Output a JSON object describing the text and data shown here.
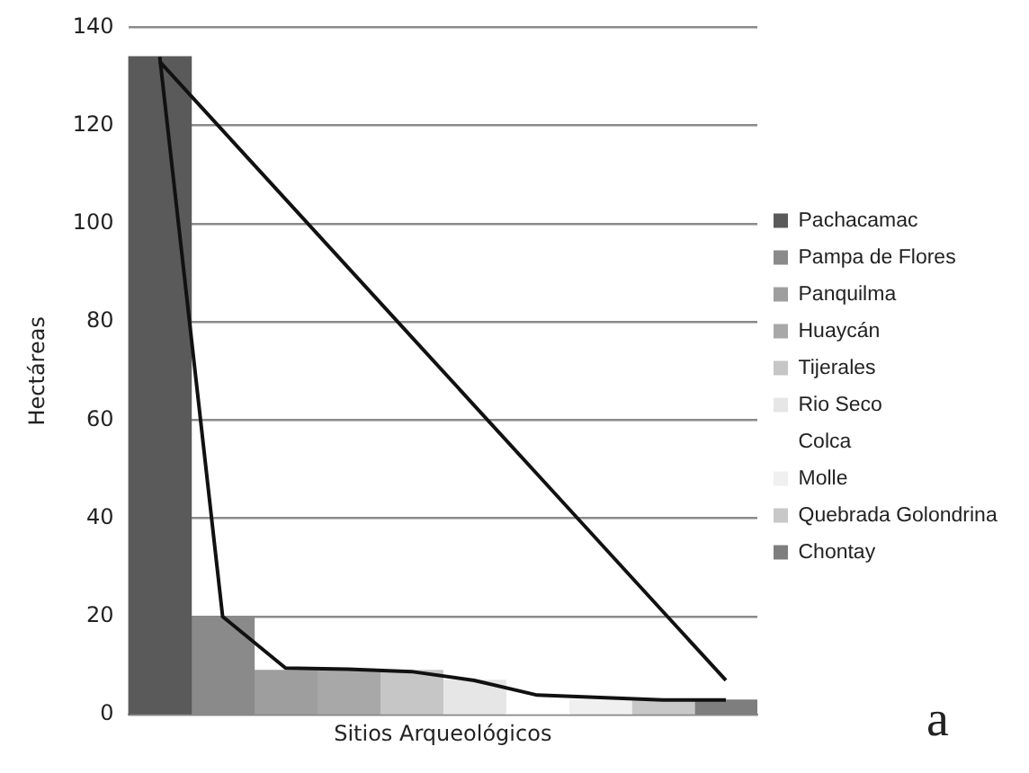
{
  "chart_data": {
    "type": "bar",
    "xlabel": "Sitios Arqueológicos",
    "ylabel": "Hectáreas",
    "categories": [
      null,
      null,
      null,
      null,
      null,
      null,
      null,
      null,
      null,
      null
    ],
    "series": [
      {
        "name": "Pachacamac",
        "color": "#5a5a5a",
        "values": [
          134,
          null,
          null,
          null,
          null,
          null,
          null,
          null,
          null,
          null
        ]
      },
      {
        "name": "Pampa de Flores",
        "color": "#8a8a8a",
        "values": [
          null,
          20,
          null,
          null,
          null,
          null,
          null,
          null,
          null,
          null
        ]
      },
      {
        "name": "Panquilma",
        "color": "#9e9e9e",
        "values": [
          null,
          null,
          9,
          null,
          null,
          null,
          null,
          null,
          null,
          null
        ]
      },
      {
        "name": "Huaycán",
        "color": "#a8a8a8",
        "values": [
          null,
          null,
          null,
          9,
          null,
          null,
          null,
          null,
          null,
          null
        ]
      },
      {
        "name": "Tijerales",
        "color": "#c6c6c6",
        "values": [
          null,
          null,
          null,
          null,
          9,
          null,
          null,
          null,
          null,
          null
        ]
      },
      {
        "name": "Rio Seco",
        "color": "#e6e6e6",
        "values": [
          null,
          null,
          null,
          null,
          null,
          7,
          null,
          null,
          null,
          null
        ]
      },
      {
        "name": "Colca",
        "color": "#ffffff",
        "values": [
          null,
          null,
          null,
          null,
          null,
          null,
          4,
          null,
          null,
          null
        ]
      },
      {
        "name": "Molle",
        "color": "#f0f0f0",
        "values": [
          null,
          null,
          null,
          null,
          null,
          null,
          null,
          3,
          null,
          null
        ]
      },
      {
        "name": "Quebrada Golondrina",
        "color": "#c8c8c8",
        "values": [
          null,
          null,
          null,
          null,
          null,
          null,
          null,
          null,
          3,
          null
        ]
      },
      {
        "name": "Chontay",
        "color": "#7e7e7e",
        "values": [
          null,
          null,
          null,
          null,
          null,
          null,
          null,
          null,
          null,
          3
        ]
      },
      {
        "type": "line",
        "color": "#111111",
        "values": [
          134,
          20,
          9.5,
          9.3,
          8.8,
          7,
          4,
          3.5,
          3,
          3
        ]
      },
      {
        "type": "line",
        "color": "#111111",
        "values": [
          133,
          119,
          105,
          91,
          77,
          63,
          49,
          35,
          21,
          7
        ]
      }
    ],
    "ylim": [
      0,
      140
    ],
    "yticks": [
      0,
      20,
      40,
      60,
      80,
      100,
      120,
      140
    ],
    "grid": "y",
    "legend": "right",
    "tick_labels": "y",
    "marker": "none",
    "annotations": [
      "a"
    ]
  }
}
